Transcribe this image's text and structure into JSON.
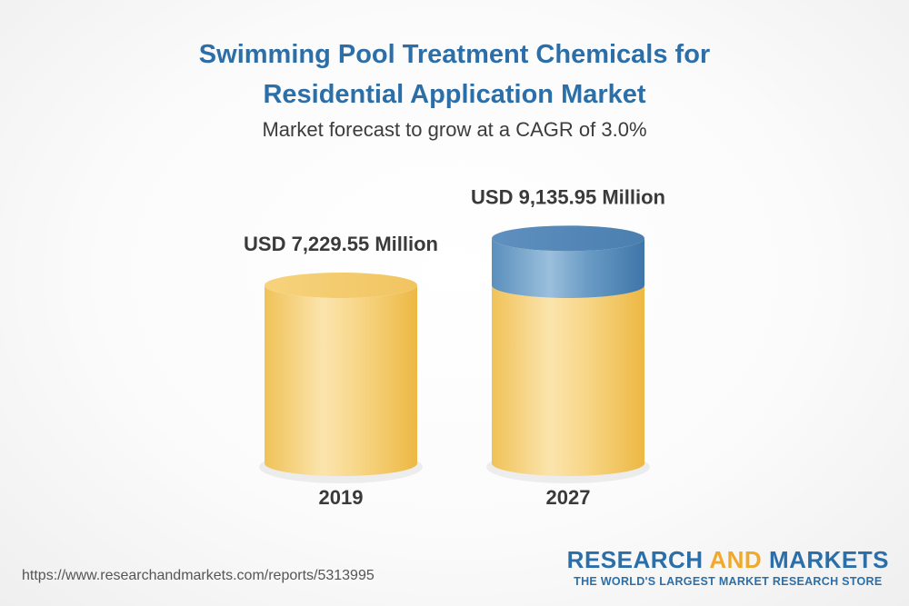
{
  "title_line1": "Swimming Pool Treatment Chemicals for",
  "title_line2": "Residential Application Market",
  "subtitle": "Market forecast to grow at a CAGR of 3.0%",
  "footer_url": "https://www.researchandmarkets.com/reports/5313995",
  "brand": {
    "word1": "RESEARCH",
    "word2": "AND",
    "word3": "MARKETS",
    "tagline": "THE WORLD'S LARGEST MARKET RESEARCH STORE"
  },
  "colors": {
    "title": "#2c6fa8",
    "base_cylinder": "#f3c55a",
    "growth_cylinder": "#4f86b5",
    "brand_accent": "#f0a92b"
  },
  "chart_data": {
    "type": "bar",
    "style": "3d-cylinder",
    "categories": [
      "2019",
      "2027"
    ],
    "values": [
      7229.55,
      9135.95
    ],
    "value_labels": [
      "USD 7,229.55 Million",
      "USD 9,135.95 Million"
    ],
    "unit": "USD Million",
    "cagr": "3.0%"
  }
}
